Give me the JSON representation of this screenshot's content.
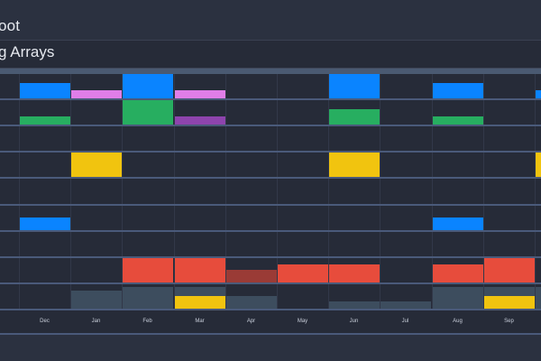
{
  "header": {
    "title": "oot",
    "subtitle": "g Arrays"
  },
  "months": [
    "Dec",
    "Jan",
    "Feb",
    "Mar",
    "Apr",
    "May",
    "Jun",
    "Jul",
    "Aug",
    "Sep"
  ],
  "colors": {
    "blue": "#0a84ff",
    "pink": "#e07ee8",
    "green": "#27ae60",
    "purple": "#8e44ad",
    "yellow": "#f1c40f",
    "red": "#e74c3c",
    "darkred": "#9a3b36",
    "slate": "#3d4d5e"
  },
  "rows": [
    {
      "id": "row-1",
      "cells": [
        {
          "col": 0,
          "color": "blue",
          "level": 0.62
        },
        {
          "col": 1,
          "color": "pink",
          "level": 0.32
        },
        {
          "col": 2,
          "color": "blue",
          "level": 1.0
        },
        {
          "col": 3,
          "color": "pink",
          "level": 0.32
        },
        {
          "col": 6,
          "color": "blue",
          "level": 1.0
        },
        {
          "col": 8,
          "color": "blue",
          "level": 0.62
        },
        {
          "col": 10,
          "color": "blue",
          "level": 0.32
        }
      ]
    },
    {
      "id": "row-2",
      "cells": [
        {
          "col": 0,
          "color": "green",
          "level": 0.32
        },
        {
          "col": 2,
          "color": "green",
          "level": 1.0
        },
        {
          "col": 3,
          "color": "purple",
          "level": 0.32
        },
        {
          "col": 6,
          "color": "green",
          "level": 0.62
        },
        {
          "col": 8,
          "color": "green",
          "level": 0.32
        }
      ]
    },
    {
      "id": "row-3",
      "cells": []
    },
    {
      "id": "row-4",
      "cells": [
        {
          "col": 1,
          "color": "yellow",
          "level": 1.0
        },
        {
          "col": 6,
          "color": "yellow",
          "level": 1.0
        },
        {
          "col": 10,
          "color": "yellow",
          "level": 1.0
        }
      ]
    },
    {
      "id": "row-5",
      "cells": []
    },
    {
      "id": "row-6",
      "cells": [
        {
          "col": 0,
          "color": "blue",
          "level": 0.52
        },
        {
          "col": 8,
          "color": "blue",
          "level": 0.52
        }
      ]
    },
    {
      "id": "row-7",
      "cells": []
    },
    {
      "id": "row-8",
      "cells": [
        {
          "col": 2,
          "color": "red",
          "level": 1.0
        },
        {
          "col": 3,
          "color": "red",
          "level": 1.0
        },
        {
          "col": 4,
          "color": "darkred",
          "level": 0.5
        },
        {
          "col": 5,
          "color": "red",
          "level": 0.75
        },
        {
          "col": 6,
          "color": "red",
          "level": 0.75
        },
        {
          "col": 8,
          "color": "red",
          "level": 0.75
        },
        {
          "col": 9,
          "color": "red",
          "level": 1.0
        }
      ]
    },
    {
      "id": "row-9",
      "cells": [
        {
          "col": 1,
          "color": "slate",
          "level": 0.72
        },
        {
          "col": 2,
          "color": "slate",
          "level": 0.9
        },
        {
          "col": 3,
          "color": "slate",
          "level": 0.9
        },
        {
          "col": 3,
          "color": "yellow",
          "level": 0.5
        },
        {
          "col": 4,
          "color": "slate",
          "level": 0.5
        },
        {
          "col": 6,
          "color": "slate",
          "level": 0.28
        },
        {
          "col": 7,
          "color": "slate",
          "level": 0.28
        },
        {
          "col": 8,
          "color": "slate",
          "level": 0.9
        },
        {
          "col": 9,
          "color": "slate",
          "level": 0.9
        },
        {
          "col": 9,
          "color": "yellow",
          "level": 0.5
        },
        {
          "col": 10,
          "color": "slate",
          "level": 0.9
        }
      ]
    }
  ]
}
